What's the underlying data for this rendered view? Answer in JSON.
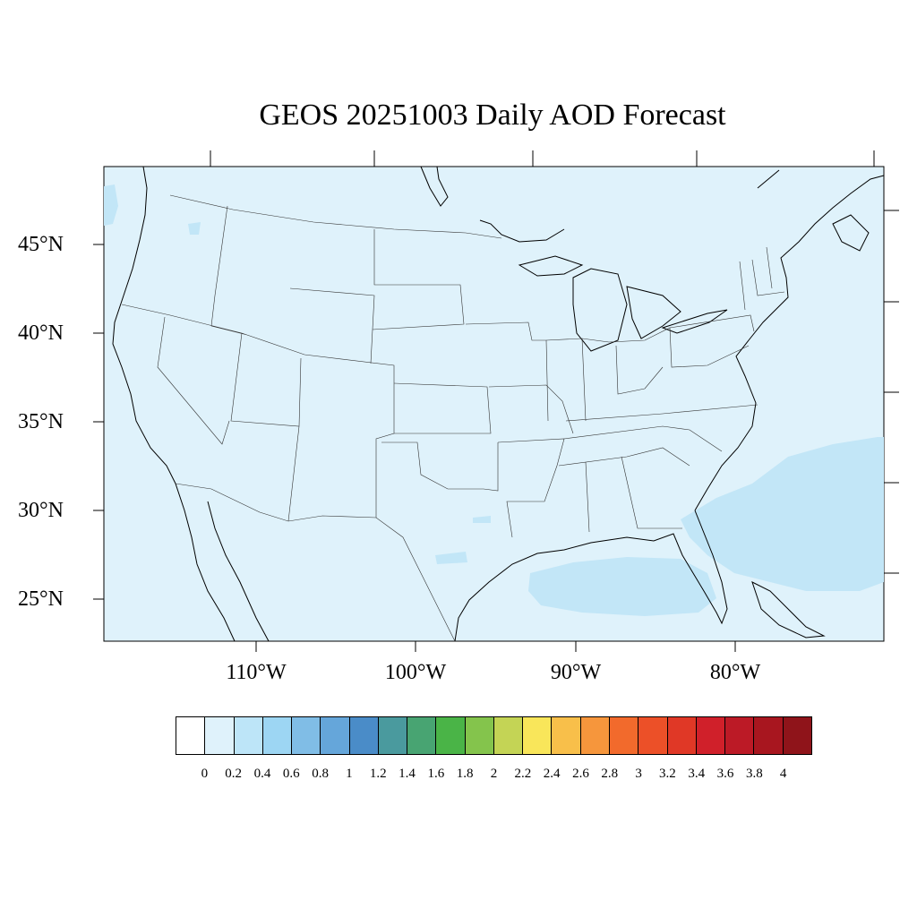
{
  "title": "GEOS 20251003 Daily AOD Forecast",
  "lat_labels": [
    "45°N",
    "40°N",
    "35°N",
    "30°N",
    "25°N"
  ],
  "lon_labels": [
    "110°W",
    "100°W",
    "90°W",
    "80°W"
  ],
  "colors": {
    "background_field": "#dff2fb",
    "enhanced_field": "#c2e6f7",
    "border": "#000000"
  },
  "colorbar": {
    "colors": [
      "#ffffff",
      "#dff2fb",
      "#bde5f8",
      "#9dd6f3",
      "#80bde6",
      "#65a6da",
      "#4a8cc8",
      "#4a9a9e",
      "#48a472",
      "#4ab447",
      "#84c44c",
      "#c4d455",
      "#f9e65a",
      "#f8bf4a",
      "#f6963c",
      "#f26a2c",
      "#ec5028",
      "#e03826",
      "#d0202a",
      "#bc1a26",
      "#a8161f",
      "#8f141a"
    ],
    "labels": [
      "0",
      "0.2",
      "0.4",
      "0.6",
      "0.8",
      "1",
      "1.2",
      "1.4",
      "1.6",
      "1.8",
      "2",
      "2.2",
      "2.4",
      "2.6",
      "2.8",
      "3",
      "3.2",
      "3.4",
      "3.6",
      "3.8",
      "4"
    ]
  }
}
